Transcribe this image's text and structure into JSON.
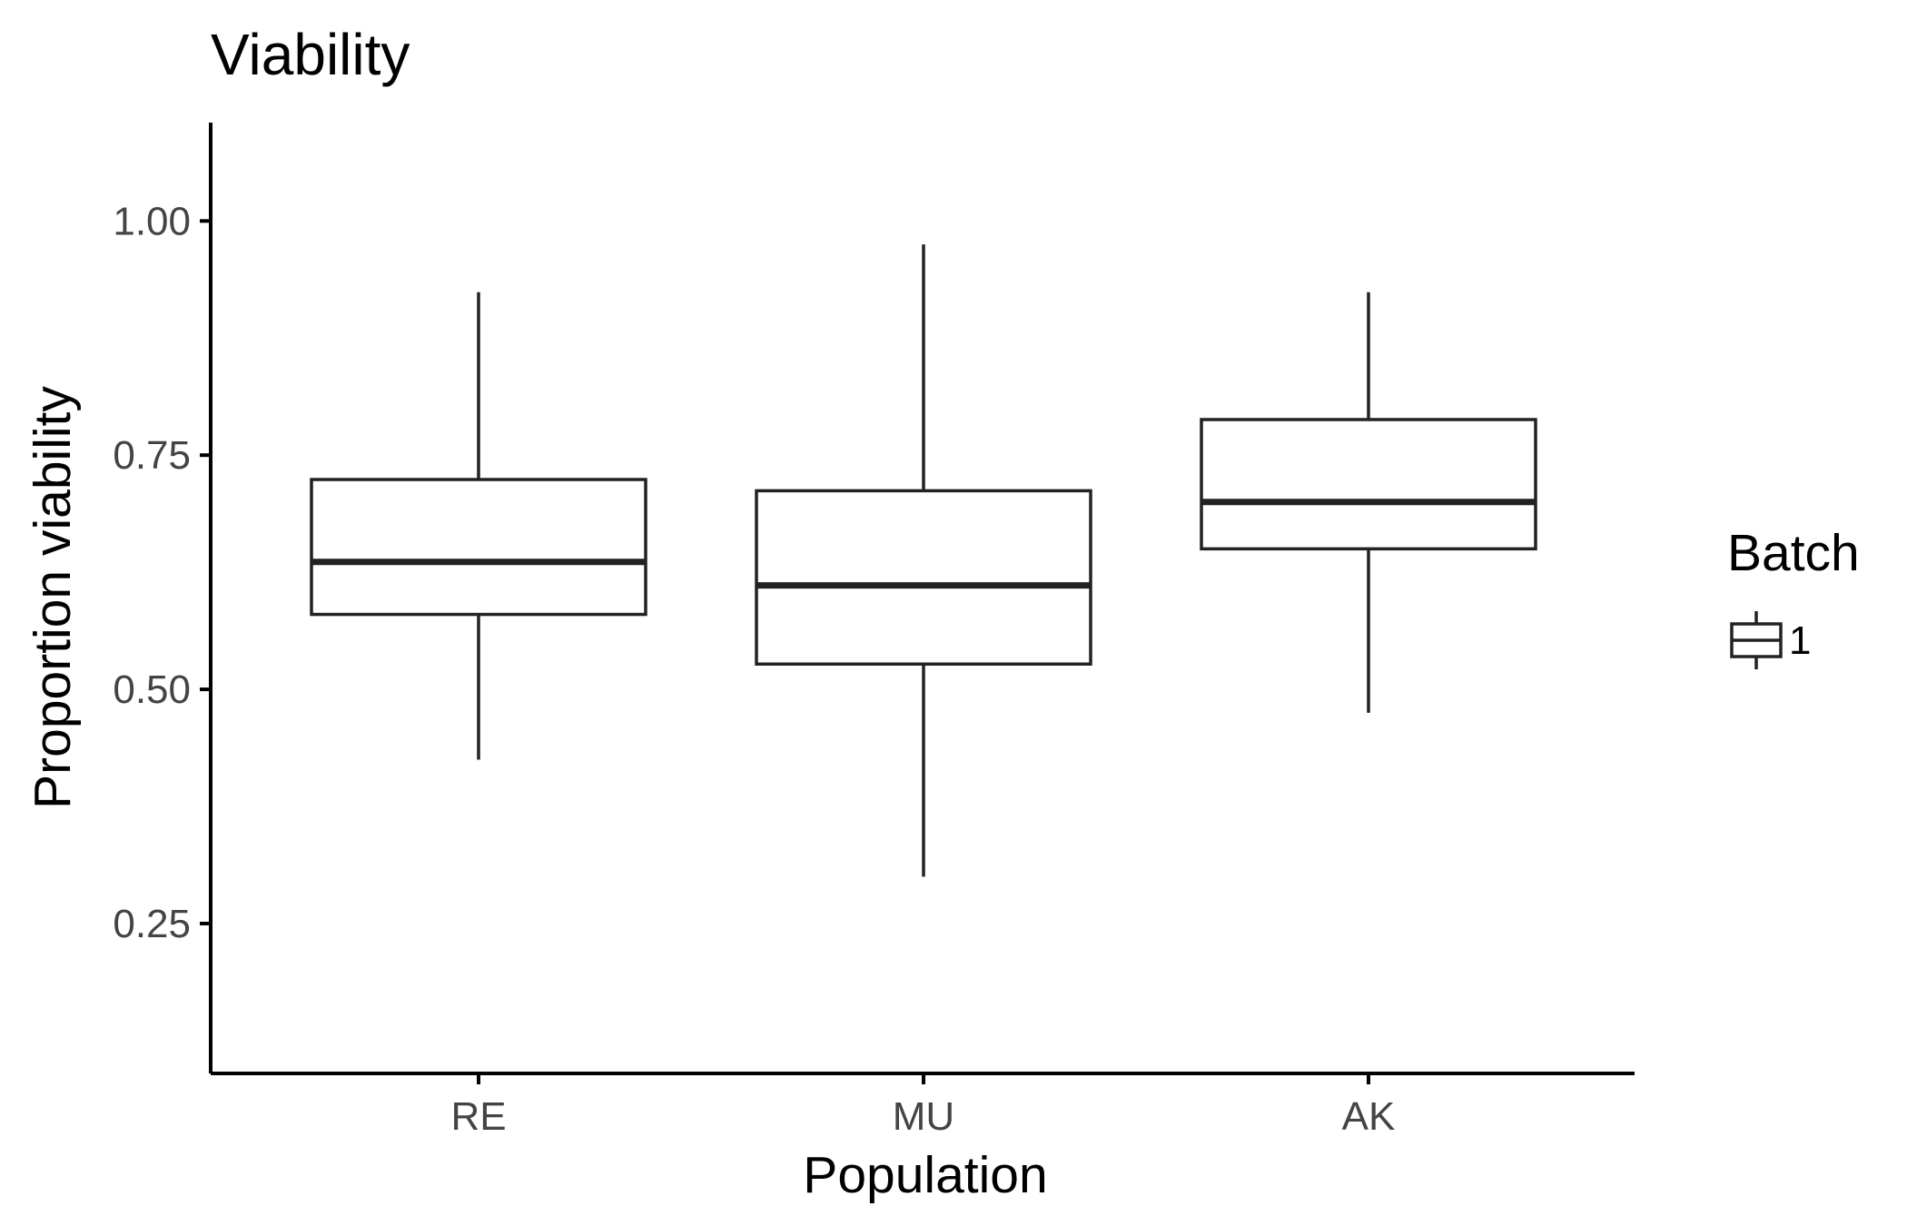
{
  "chart_data": {
    "type": "box",
    "title": "Viability",
    "xlabel": "Population",
    "ylabel": "Proportion viability",
    "categories": [
      "RE",
      "MU",
      "AK"
    ],
    "ylim": [
      0.09,
      1.105
    ],
    "yticks": [
      {
        "value": 0.25,
        "label": "0.25"
      },
      {
        "value": 0.5,
        "label": "0.50"
      },
      {
        "value": 0.75,
        "label": "0.75"
      },
      {
        "value": 1.0,
        "label": "1.00"
      }
    ],
    "series": [
      {
        "legend_label": "1",
        "boxes": [
          {
            "category": "RE",
            "min": 0.425,
            "q1": 0.58,
            "median": 0.636,
            "q3": 0.724,
            "max": 0.924
          },
          {
            "category": "MU",
            "min": 0.3,
            "q1": 0.527,
            "median": 0.611,
            "q3": 0.712,
            "max": 0.975
          },
          {
            "category": "AK",
            "min": 0.475,
            "q1": 0.65,
            "median": 0.7,
            "q3": 0.788,
            "max": 0.924
          }
        ]
      }
    ],
    "legend": {
      "title": "Batch",
      "position": "right"
    },
    "grid": false,
    "colors": {
      "line": "#222222",
      "box_fill": "#ffffff",
      "axis": "#000000"
    }
  }
}
